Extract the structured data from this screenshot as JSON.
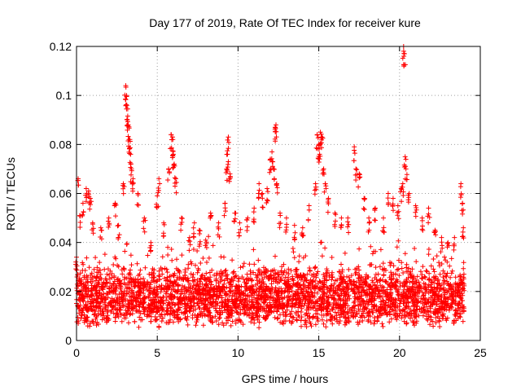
{
  "chart_data": {
    "type": "scatter",
    "title": "Day 177 of 2019, Rate Of TEC Index for receiver kure",
    "xlabel": "GPS time / hours",
    "ylabel": "ROTI / TECUs",
    "xlim": [
      0,
      25
    ],
    "ylim": [
      0,
      0.12
    ],
    "x_ticks": [
      0,
      5,
      10,
      15,
      20,
      25
    ],
    "x_tick_labels": [
      "0",
      "5",
      "10",
      "15",
      "20",
      "25"
    ],
    "y_ticks": [
      0,
      0.02,
      0.04,
      0.06,
      0.08,
      0.1,
      0.12
    ],
    "y_tick_labels": [
      "0",
      "0.02",
      "0.04",
      "0.06",
      "0.08",
      "0.1",
      "0.12"
    ],
    "grid": true,
    "legend": "none",
    "series": [
      {
        "name": "ROTI",
        "color": "#ff0000",
        "marker": "plus",
        "x_range": [
          0,
          24
        ],
        "typical_range": [
          0.005,
          0.03
        ],
        "points": [
          {
            "x": 0.0,
            "y": 0.034
          },
          {
            "x": 0.1,
            "y": 0.066
          },
          {
            "x": 0.2,
            "y": 0.051
          },
          {
            "x": 0.4,
            "y": 0.056
          },
          {
            "x": 0.6,
            "y": 0.062
          },
          {
            "x": 0.75,
            "y": 0.061
          },
          {
            "x": 0.85,
            "y": 0.058
          },
          {
            "x": 1.0,
            "y": 0.048
          },
          {
            "x": 1.5,
            "y": 0.046
          },
          {
            "x": 2.0,
            "y": 0.05
          },
          {
            "x": 2.4,
            "y": 0.056
          },
          {
            "x": 2.6,
            "y": 0.047
          },
          {
            "x": 2.9,
            "y": 0.064
          },
          {
            "x": 3.05,
            "y": 0.104
          },
          {
            "x": 3.1,
            "y": 0.1
          },
          {
            "x": 3.12,
            "y": 0.096
          },
          {
            "x": 3.15,
            "y": 0.09
          },
          {
            "x": 3.2,
            "y": 0.088
          },
          {
            "x": 3.25,
            "y": 0.082
          },
          {
            "x": 3.3,
            "y": 0.082
          },
          {
            "x": 3.35,
            "y": 0.076
          },
          {
            "x": 3.4,
            "y": 0.07
          },
          {
            "x": 3.5,
            "y": 0.066
          },
          {
            "x": 3.8,
            "y": 0.06
          },
          {
            "x": 4.2,
            "y": 0.05
          },
          {
            "x": 4.6,
            "y": 0.04
          },
          {
            "x": 5.0,
            "y": 0.059
          },
          {
            "x": 5.1,
            "y": 0.066
          },
          {
            "x": 5.4,
            "y": 0.048
          },
          {
            "x": 5.7,
            "y": 0.07
          },
          {
            "x": 5.85,
            "y": 0.084
          },
          {
            "x": 5.95,
            "y": 0.083
          },
          {
            "x": 6.0,
            "y": 0.076
          },
          {
            "x": 6.05,
            "y": 0.072
          },
          {
            "x": 6.15,
            "y": 0.066
          },
          {
            "x": 6.5,
            "y": 0.05
          },
          {
            "x": 7.0,
            "y": 0.042
          },
          {
            "x": 7.3,
            "y": 0.048
          },
          {
            "x": 7.6,
            "y": 0.045
          },
          {
            "x": 8.0,
            "y": 0.041
          },
          {
            "x": 8.3,
            "y": 0.052
          },
          {
            "x": 8.8,
            "y": 0.048
          },
          {
            "x": 9.2,
            "y": 0.056
          },
          {
            "x": 9.3,
            "y": 0.07
          },
          {
            "x": 9.35,
            "y": 0.076
          },
          {
            "x": 9.4,
            "y": 0.083
          },
          {
            "x": 9.5,
            "y": 0.068
          },
          {
            "x": 9.8,
            "y": 0.052
          },
          {
            "x": 10.1,
            "y": 0.048
          },
          {
            "x": 10.6,
            "y": 0.05
          },
          {
            "x": 11.0,
            "y": 0.054
          },
          {
            "x": 11.3,
            "y": 0.064
          },
          {
            "x": 11.5,
            "y": 0.06
          },
          {
            "x": 11.8,
            "y": 0.062
          },
          {
            "x": 12.0,
            "y": 0.074
          },
          {
            "x": 12.1,
            "y": 0.077
          },
          {
            "x": 12.2,
            "y": 0.07
          },
          {
            "x": 12.3,
            "y": 0.087
          },
          {
            "x": 12.35,
            "y": 0.088
          },
          {
            "x": 12.4,
            "y": 0.064
          },
          {
            "x": 12.6,
            "y": 0.052
          },
          {
            "x": 13.0,
            "y": 0.05
          },
          {
            "x": 13.5,
            "y": 0.047
          },
          {
            "x": 14.0,
            "y": 0.046
          },
          {
            "x": 14.4,
            "y": 0.055
          },
          {
            "x": 14.8,
            "y": 0.064
          },
          {
            "x": 14.9,
            "y": 0.084
          },
          {
            "x": 15.0,
            "y": 0.08
          },
          {
            "x": 15.05,
            "y": 0.076
          },
          {
            "x": 15.1,
            "y": 0.085
          },
          {
            "x": 15.2,
            "y": 0.083
          },
          {
            "x": 15.3,
            "y": 0.07
          },
          {
            "x": 15.4,
            "y": 0.064
          },
          {
            "x": 15.6,
            "y": 0.058
          },
          {
            "x": 16.0,
            "y": 0.052
          },
          {
            "x": 16.4,
            "y": 0.05
          },
          {
            "x": 16.8,
            "y": 0.05
          },
          {
            "x": 17.2,
            "y": 0.079
          },
          {
            "x": 17.3,
            "y": 0.07
          },
          {
            "x": 17.5,
            "y": 0.068
          },
          {
            "x": 17.8,
            "y": 0.058
          },
          {
            "x": 18.1,
            "y": 0.05
          },
          {
            "x": 18.5,
            "y": 0.054
          },
          {
            "x": 19.0,
            "y": 0.05
          },
          {
            "x": 19.3,
            "y": 0.06
          },
          {
            "x": 19.6,
            "y": 0.058
          },
          {
            "x": 19.9,
            "y": 0.055
          },
          {
            "x": 20.1,
            "y": 0.062
          },
          {
            "x": 20.2,
            "y": 0.064
          },
          {
            "x": 20.25,
            "y": 0.12
          },
          {
            "x": 20.3,
            "y": 0.117
          },
          {
            "x": 20.35,
            "y": 0.075
          },
          {
            "x": 20.4,
            "y": 0.07
          },
          {
            "x": 20.6,
            "y": 0.06
          },
          {
            "x": 21.0,
            "y": 0.055
          },
          {
            "x": 21.4,
            "y": 0.05
          },
          {
            "x": 21.8,
            "y": 0.054
          },
          {
            "x": 22.2,
            "y": 0.045
          },
          {
            "x": 22.6,
            "y": 0.042
          },
          {
            "x": 23.0,
            "y": 0.04
          },
          {
            "x": 23.4,
            "y": 0.042
          },
          {
            "x": 23.8,
            "y": 0.064
          },
          {
            "x": 23.9,
            "y": 0.056
          },
          {
            "x": 23.95,
            "y": 0.046
          }
        ]
      }
    ]
  }
}
